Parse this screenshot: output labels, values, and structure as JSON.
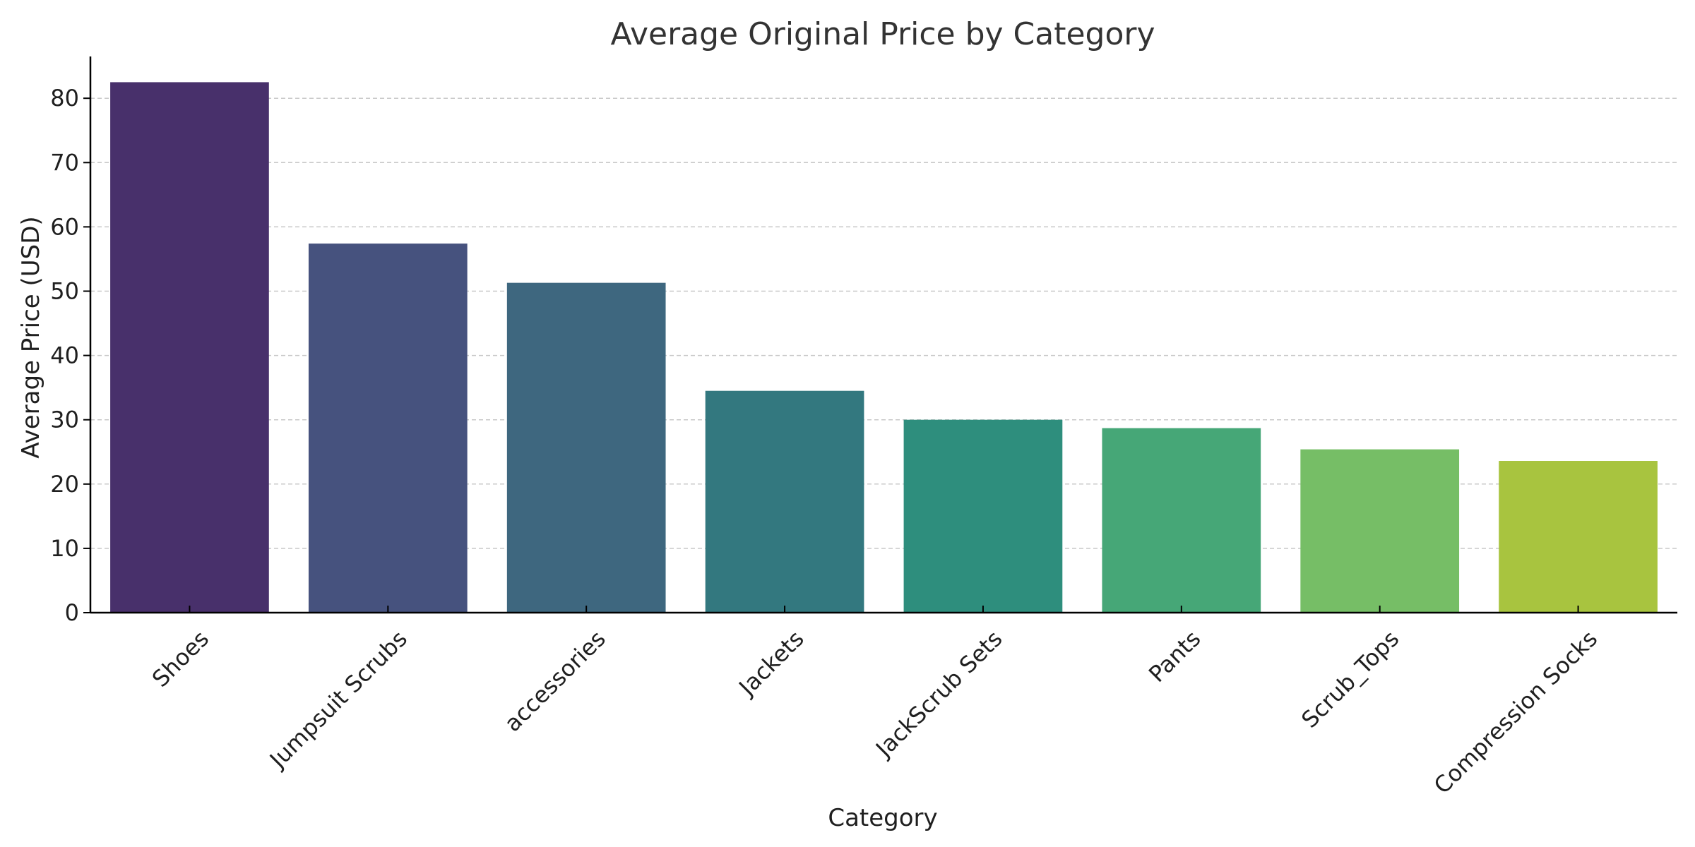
{
  "chart_data": {
    "type": "bar",
    "title": "Average Original Price by Category",
    "xlabel": "Category",
    "ylabel": "Average Price (USD)",
    "categories": [
      "Shoes",
      "Jumpsuit Scrubs",
      "accessories",
      "Jackets",
      "JackScrub Sets",
      "Pants",
      "Scrub_Tops",
      "Compression Socks"
    ],
    "values": [
      82.5,
      57.4,
      51.3,
      34.5,
      30.0,
      28.7,
      25.4,
      23.6
    ],
    "colors": [
      "#48306B",
      "#46527E",
      "#3E677F",
      "#33787F",
      "#2E8E7D",
      "#46A777",
      "#76BE66",
      "#A8C43F"
    ],
    "ylim": [
      0,
      86.5
    ],
    "yticks": [
      0,
      10,
      20,
      30,
      40,
      50,
      60,
      70,
      80
    ],
    "grid": true
  }
}
